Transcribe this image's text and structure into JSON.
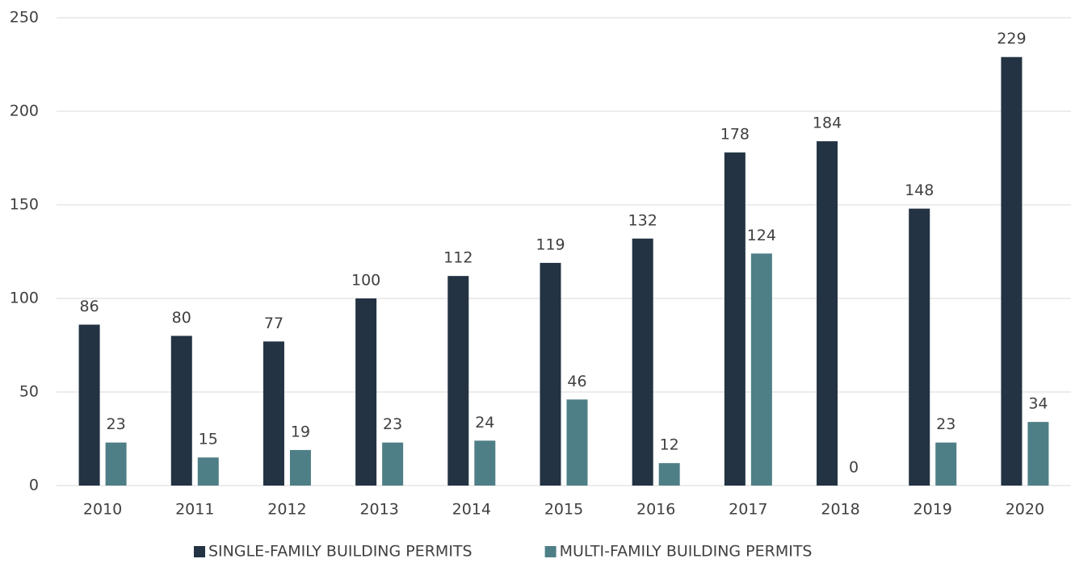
{
  "chart_data": {
    "type": "bar",
    "categories": [
      "2010",
      "2011",
      "2012",
      "2013",
      "2014",
      "2015",
      "2016",
      "2017",
      "2018",
      "2019",
      "2020"
    ],
    "series": [
      {
        "name": "SINGLE-FAMILY BUILDING PERMITS",
        "color": "#233343",
        "values": [
          86,
          80,
          77,
          100,
          112,
          119,
          132,
          178,
          184,
          148,
          229
        ]
      },
      {
        "name": "MULTI-FAMILY BUILDING PERMITS",
        "color": "#4f7f86",
        "values": [
          23,
          15,
          19,
          23,
          24,
          46,
          12,
          124,
          0,
          23,
          34
        ]
      }
    ],
    "ylim": [
      0,
      250
    ],
    "yticks": [
      0,
      50,
      100,
      150,
      200,
      250
    ],
    "grid": true,
    "legend": "bottom"
  }
}
